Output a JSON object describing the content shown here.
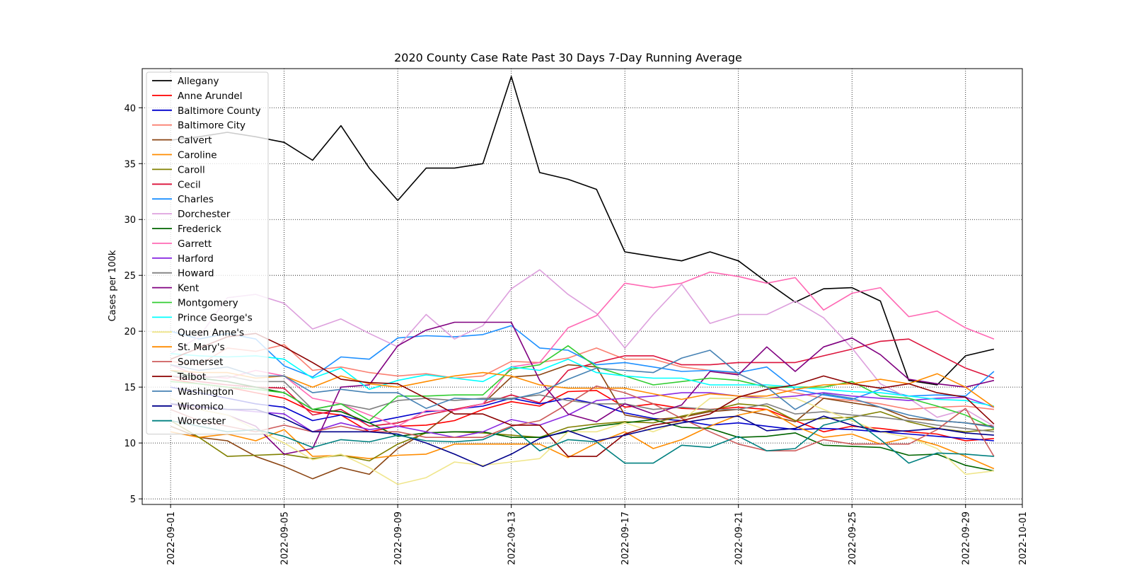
{
  "chart_data": {
    "type": "line",
    "title": "2020 County Case Rate  Past 30 Days 7-Day Running Average",
    "xlabel": "",
    "ylabel": "Cases per 100k",
    "x": [
      "2022-09-01",
      "2022-09-02",
      "2022-09-03",
      "2022-09-04",
      "2022-09-05",
      "2022-09-06",
      "2022-09-07",
      "2022-09-08",
      "2022-09-09",
      "2022-09-10",
      "2022-09-11",
      "2022-09-12",
      "2022-09-13",
      "2022-09-14",
      "2022-09-15",
      "2022-09-16",
      "2022-09-17",
      "2022-09-18",
      "2022-09-19",
      "2022-09-20",
      "2022-09-21",
      "2022-09-22",
      "2022-09-23",
      "2022-09-24",
      "2022-09-25",
      "2022-09-26",
      "2022-09-27",
      "2022-09-28",
      "2022-09-29",
      "2022-09-30"
    ],
    "xlim": [
      "2022-08-31",
      "2022-10-01"
    ],
    "ylim": [
      4.5,
      43.5
    ],
    "xticks": [
      "2022-09-01",
      "2022-09-05",
      "2022-09-09",
      "2022-09-13",
      "2022-09-17",
      "2022-09-21",
      "2022-09-25",
      "2022-09-29",
      "2022-10-01"
    ],
    "yticks": [
      5,
      10,
      15,
      20,
      25,
      30,
      35,
      40
    ],
    "grid": true,
    "legend_position": "upper-left",
    "series": [
      {
        "name": "Allegany",
        "color": "#000000",
        "values": [
          37.1,
          37.4,
          37.8,
          37.4,
          36.9,
          35.3,
          38.4,
          34.6,
          31.7,
          34.6,
          34.6,
          35.0,
          42.8,
          34.2,
          33.6,
          32.7,
          27.1,
          26.7,
          26.3,
          27.1,
          26.3,
          24.4,
          22.6,
          23.8,
          23.9,
          22.7,
          15.6,
          15.2,
          17.8,
          18.4
        ]
      },
      {
        "name": "Anne Arundel",
        "color": "#ff0000",
        "values": [
          15.7,
          15.3,
          15.0,
          14.5,
          14.0,
          12.8,
          12.5,
          11.0,
          11.5,
          11.6,
          12.0,
          13.0,
          13.7,
          13.3,
          14.6,
          14.7,
          13.2,
          13.5,
          13.1,
          13.0,
          13.2,
          13.0,
          12.0,
          11.0,
          11.5,
          11.3,
          11.0,
          10.8,
          10.2,
          10.4
        ]
      },
      {
        "name": "Baltimore County",
        "color": "#0000cd",
        "values": [
          15.0,
          14.5,
          14.0,
          13.5,
          13.2,
          12.0,
          12.5,
          11.8,
          12.3,
          12.8,
          13.0,
          13.3,
          14.0,
          13.5,
          14.0,
          13.5,
          12.7,
          12.2,
          12.0,
          11.6,
          11.8,
          11.5,
          11.2,
          11.3,
          11.2,
          11.0,
          10.8,
          10.6,
          10.4,
          10.2
        ]
      },
      {
        "name": "Baltimore City",
        "color": "#fa8072",
        "values": [
          17.3,
          17.0,
          18.5,
          18.2,
          18.8,
          16.5,
          16.8,
          16.3,
          16.0,
          16.2,
          15.8,
          16.0,
          17.3,
          17.2,
          17.6,
          18.5,
          17.5,
          17.5,
          16.8,
          16.5,
          16.2,
          15.0,
          14.5,
          14.0,
          13.8,
          13.5,
          13.0,
          13.2,
          13.3,
          13.0
        ]
      },
      {
        "name": "Calvert",
        "color": "#8b4513",
        "values": [
          11.5,
          10.5,
          10.2,
          8.8,
          7.9,
          6.8,
          7.8,
          7.2,
          9.5,
          11.0,
          13.0,
          13.5,
          15.9,
          16.1,
          17.0,
          16.8,
          12.5,
          12.1,
          12.3,
          12.8,
          13.0,
          12.5,
          11.9,
          14.0,
          13.6,
          13.2,
          12.2,
          12.0,
          11.8,
          11.5
        ]
      },
      {
        "name": "Caroline",
        "color": "#ff8c00",
        "values": [
          11.0,
          10.5,
          10.8,
          10.2,
          11.2,
          8.8,
          8.9,
          8.6,
          8.9,
          9.0,
          9.9,
          9.9,
          9.9,
          9.9,
          8.7,
          10.0,
          11.0,
          9.5,
          10.3,
          11.5,
          12.5,
          13.0,
          11.5,
          10.5,
          10.8,
          9.9,
          10.5,
          9.8,
          8.8,
          7.7
        ]
      },
      {
        "name": "Caroll",
        "color": "#808000",
        "values": [
          12.0,
          10.5,
          8.8,
          8.9,
          9.0,
          8.6,
          8.9,
          8.4,
          9.9,
          10.9,
          11.0,
          10.9,
          10.7,
          10.5,
          11.4,
          11.7,
          11.9,
          11.8,
          12.4,
          12.9,
          13.5,
          13.3,
          12.0,
          12.2,
          12.3,
          12.8,
          11.9,
          11.3,
          11.0,
          11.2
        ]
      },
      {
        "name": "Cecil",
        "color": "#dc143c",
        "values": [
          16.0,
          15.5,
          15.2,
          15.0,
          14.9,
          12.5,
          13.0,
          11.5,
          11.8,
          12.5,
          13.0,
          13.5,
          14.3,
          13.6,
          16.5,
          17.2,
          17.8,
          17.8,
          17.0,
          17.0,
          17.2,
          17.2,
          17.2,
          17.8,
          18.4,
          19.1,
          19.3,
          18.0,
          16.7,
          15.8
        ]
      },
      {
        "name": "Charles",
        "color": "#1e90ff",
        "values": [
          20.0,
          19.3,
          19.8,
          19.3,
          16.9,
          15.9,
          17.7,
          17.5,
          19.4,
          19.6,
          19.5,
          19.7,
          20.5,
          18.5,
          18.3,
          17.0,
          17.2,
          16.8,
          16.4,
          16.5,
          16.3,
          16.8,
          14.8,
          14.3,
          13.9,
          14.8,
          14.2,
          14.3,
          14.2,
          16.4
        ]
      },
      {
        "name": "Dorchester",
        "color": "#dda0dd",
        "values": [
          18.0,
          19.5,
          23.0,
          23.3,
          22.5,
          20.2,
          21.1,
          19.8,
          18.6,
          21.5,
          19.3,
          20.5,
          23.8,
          25.5,
          23.3,
          21.6,
          18.5,
          21.5,
          24.2,
          20.7,
          21.5,
          21.5,
          22.7,
          21.2,
          18.5,
          15.3,
          14.0,
          12.3,
          13.0,
          11.5
        ]
      },
      {
        "name": "Frederick",
        "color": "#006400",
        "values": [
          16.5,
          15.8,
          15.5,
          15.0,
          14.5,
          13.0,
          12.8,
          11.8,
          10.6,
          10.9,
          11.0,
          11.0,
          10.5,
          10.5,
          11.0,
          11.5,
          11.8,
          12.1,
          11.4,
          11.3,
          10.5,
          10.6,
          10.9,
          9.8,
          9.7,
          9.6,
          8.9,
          9.0,
          8.0,
          7.5
        ]
      },
      {
        "name": "Garrett",
        "color": "#ff69b4",
        "values": [
          17.0,
          16.0,
          15.8,
          16.5,
          16.0,
          14.0,
          13.5,
          12.5,
          11.5,
          12.9,
          12.9,
          13.5,
          16.8,
          17.2,
          20.3,
          21.4,
          24.3,
          23.9,
          24.3,
          25.3,
          24.9,
          24.3,
          24.8,
          21.9,
          23.4,
          23.9,
          21.3,
          21.8,
          20.3,
          19.3
        ]
      },
      {
        "name": "Harford",
        "color": "#8a2be2",
        "values": [
          13.5,
          13.2,
          13.0,
          12.8,
          12.6,
          11.0,
          11.8,
          11.2,
          11.5,
          11.0,
          10.5,
          11.0,
          12.1,
          11.6,
          12.5,
          13.8,
          14.0,
          14.2,
          14.5,
          14.5,
          14.2,
          14.0,
          14.2,
          14.5,
          14.2,
          14.0,
          13.8,
          14.0,
          14.1,
          13.2
        ]
      },
      {
        "name": "Howard",
        "color": "#808080",
        "values": [
          16.0,
          15.8,
          16.0,
          15.5,
          15.5,
          13.0,
          13.5,
          13.0,
          13.8,
          14.0,
          13.8,
          14.0,
          14.0,
          14.3,
          13.8,
          13.5,
          13.5,
          13.0,
          13.2,
          13.0,
          13.0,
          13.5,
          12.6,
          12.8,
          12.5,
          12.3,
          12.0,
          11.6,
          11.3,
          11.0
        ]
      },
      {
        "name": "Kent",
        "color": "#800080",
        "values": [
          13.5,
          13.0,
          12.5,
          11.5,
          9.0,
          9.5,
          15.0,
          15.2,
          18.7,
          20.1,
          20.8,
          20.8,
          20.8,
          15.6,
          12.6,
          11.9,
          13.5,
          12.6,
          13.4,
          16.4,
          16.1,
          18.6,
          16.4,
          18.6,
          19.4,
          17.9,
          15.7,
          15.3,
          15.0,
          15.6
        ]
      },
      {
        "name": "Montgomery",
        "color": "#32cd32",
        "values": [
          15.5,
          15.3,
          15.0,
          14.8,
          14.5,
          13.0,
          13.5,
          12.0,
          14.2,
          14.2,
          14.3,
          14.3,
          16.6,
          17.0,
          18.7,
          16.8,
          16.0,
          15.2,
          15.5,
          15.8,
          15.6,
          15.0,
          15.0,
          15.0,
          15.5,
          14.2,
          14.0,
          13.3,
          12.5,
          11.3
        ]
      },
      {
        "name": "Prince George's",
        "color": "#00ffff",
        "values": [
          18.0,
          17.8,
          17.7,
          17.8,
          17.5,
          15.8,
          16.7,
          14.8,
          15.6,
          16.1,
          15.8,
          15.5,
          16.8,
          16.5,
          17.5,
          16.3,
          16.0,
          15.8,
          15.8,
          15.2,
          15.2,
          15.2,
          15.0,
          14.8,
          14.6,
          14.5,
          14.2,
          13.9,
          13.8,
          13.3
        ]
      },
      {
        "name": "Queen Anne's",
        "color": "#f0e68c",
        "values": [
          14.0,
          13.0,
          12.5,
          11.2,
          10.0,
          8.5,
          9.0,
          7.8,
          6.3,
          6.9,
          8.3,
          8.0,
          8.3,
          8.6,
          11.0,
          11.0,
          11.8,
          11.0,
          12.0,
          14.0,
          14.0,
          14.0,
          14.0,
          13.0,
          12.0,
          11.0,
          10.5,
          9.5,
          7.2,
          7.5
        ]
      },
      {
        "name": "St. Mary's",
        "color": "#ff8c00",
        "values": [
          16.5,
          16.3,
          16.3,
          15.8,
          16.0,
          15.0,
          16.0,
          15.3,
          15.0,
          15.5,
          16.0,
          16.3,
          16.0,
          15.2,
          14.9,
          14.9,
          14.9,
          14.4,
          13.9,
          14.4,
          14.2,
          14.2,
          14.8,
          15.2,
          15.3,
          15.7,
          15.3,
          16.2,
          15.0,
          13.2
        ]
      },
      {
        "name": "Somerset",
        "color": "#cd5c5c",
        "values": [
          13.0,
          12.0,
          11.5,
          11.0,
          11.6,
          11.0,
          11.5,
          11.0,
          11.0,
          10.5,
          10.5,
          10.5,
          11.5,
          12.0,
          13.5,
          15.1,
          14.5,
          13.5,
          12.2,
          11.0,
          9.9,
          9.3,
          9.3,
          10.3,
          9.9,
          9.9,
          9.9,
          11.2,
          13.1,
          8.8
        ]
      },
      {
        "name": "Talbot",
        "color": "#8b0000",
        "values": [
          17.5,
          18.5,
          19.5,
          19.8,
          18.6,
          17.2,
          15.7,
          15.4,
          15.3,
          14.0,
          12.6,
          12.6,
          11.6,
          11.6,
          8.8,
          8.8,
          10.8,
          11.6,
          12.0,
          12.6,
          14.1,
          14.8,
          15.2,
          16.0,
          15.3,
          14.9,
          15.3,
          14.5,
          14.1,
          11.7
        ]
      },
      {
        "name": "Washington",
        "color": "#4682b4",
        "values": [
          17.0,
          16.5,
          16.8,
          16.0,
          16.0,
          14.5,
          14.8,
          14.5,
          14.5,
          13.1,
          14.0,
          13.9,
          13.9,
          14.5,
          15.7,
          16.7,
          16.5,
          16.3,
          17.6,
          18.3,
          16.2,
          15.0,
          13.0,
          14.4,
          14.0,
          13.2,
          12.5,
          12.0,
          11.8,
          11.4
        ]
      },
      {
        "name": "Wicomico",
        "color": "#00008b",
        "values": [
          13.5,
          13.3,
          13.0,
          13.0,
          12.2,
          11.0,
          11.0,
          11.0,
          10.8,
          10.0,
          9.0,
          7.9,
          9.0,
          10.4,
          11.1,
          10.2,
          10.7,
          11.3,
          11.8,
          12.2,
          12.4,
          11.1,
          11.3,
          12.4,
          11.6,
          11.0,
          11.1,
          11.3,
          10.9,
          10.7
        ]
      },
      {
        "name": "Worcester",
        "color": "#008080",
        "values": [
          12.0,
          11.5,
          11.0,
          11.2,
          10.6,
          9.6,
          10.3,
          10.1,
          10.7,
          10.2,
          10.1,
          10.3,
          11.4,
          9.3,
          10.3,
          10.1,
          8.2,
          8.2,
          9.8,
          9.6,
          10.6,
          9.3,
          9.5,
          11.6,
          12.2,
          10.3,
          8.2,
          9.1,
          9.0,
          8.8
        ]
      }
    ]
  }
}
